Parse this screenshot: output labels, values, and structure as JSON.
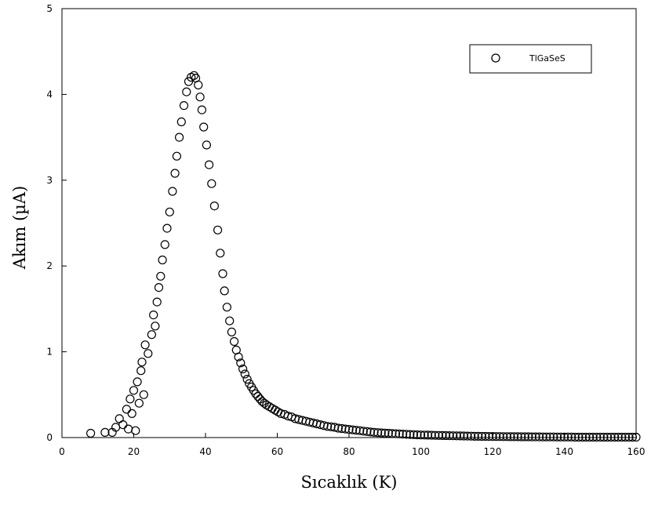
{
  "chart_data": {
    "type": "scatter",
    "title": "",
    "xlabel": "Sıcaklık (K)",
    "ylabel": "Akım (µA)",
    "xlim": [
      0,
      160
    ],
    "ylim": [
      0,
      5
    ],
    "x_ticks": [
      "0",
      "20",
      "40",
      "60",
      "80",
      "100",
      "120",
      "140",
      "160"
    ],
    "y_ticks": [
      "0",
      "1",
      "2",
      "3",
      "4",
      "5"
    ],
    "grid": false,
    "legend_position": "top-right",
    "marker": "open-circle",
    "series": [
      {
        "name": "TlGaSeS",
        "color": "#000000",
        "points": [
          [
            8,
            0.05
          ],
          [
            12,
            0.06
          ],
          [
            14,
            0.06
          ],
          [
            15,
            0.12
          ],
          [
            16,
            0.22
          ],
          [
            17,
            0.15
          ],
          [
            18,
            0.33
          ],
          [
            18.5,
            0.1
          ],
          [
            19,
            0.45
          ],
          [
            19.5,
            0.28
          ],
          [
            20,
            0.55
          ],
          [
            20.5,
            0.08
          ],
          [
            21,
            0.65
          ],
          [
            21.5,
            0.4
          ],
          [
            22,
            0.78
          ],
          [
            22.3,
            0.88
          ],
          [
            22.8,
            0.5
          ],
          [
            23.2,
            1.08
          ],
          [
            24,
            0.98
          ],
          [
            25,
            1.2
          ],
          [
            25.5,
            1.43
          ],
          [
            26,
            1.3
          ],
          [
            26.5,
            1.58
          ],
          [
            27,
            1.75
          ],
          [
            27.5,
            1.88
          ],
          [
            28,
            2.07
          ],
          [
            28.7,
            2.25
          ],
          [
            29.3,
            2.44
          ],
          [
            30,
            2.63
          ],
          [
            30.8,
            2.87
          ],
          [
            31.5,
            3.08
          ],
          [
            32,
            3.28
          ],
          [
            32.7,
            3.5
          ],
          [
            33.3,
            3.68
          ],
          [
            34,
            3.87
          ],
          [
            34.7,
            4.03
          ],
          [
            35.3,
            4.15
          ],
          [
            36,
            4.2
          ],
          [
            36.8,
            4.22
          ],
          [
            37.3,
            4.19
          ],
          [
            38,
            4.11
          ],
          [
            38.5,
            3.97
          ],
          [
            39,
            3.82
          ],
          [
            39.5,
            3.62
          ],
          [
            40.3,
            3.41
          ],
          [
            41,
            3.18
          ],
          [
            41.7,
            2.96
          ],
          [
            42.5,
            2.7
          ],
          [
            43.4,
            2.42
          ],
          [
            44.1,
            2.15
          ],
          [
            44.8,
            1.91
          ],
          [
            45.3,
            1.71
          ],
          [
            46,
            1.52
          ],
          [
            46.7,
            1.36
          ],
          [
            47.3,
            1.23
          ],
          [
            48,
            1.12
          ],
          [
            48.6,
            1.02
          ],
          [
            49.2,
            0.94
          ],
          [
            49.8,
            0.87
          ],
          [
            50.4,
            0.8
          ],
          [
            51,
            0.74
          ],
          [
            51.6,
            0.68
          ],
          [
            52.2,
            0.63
          ],
          [
            52.8,
            0.59
          ],
          [
            53.4,
            0.55
          ],
          [
            54,
            0.51
          ],
          [
            54.6,
            0.48
          ],
          [
            55.2,
            0.45
          ],
          [
            55.8,
            0.42
          ],
          [
            56.4,
            0.4
          ],
          [
            57,
            0.38
          ],
          [
            57.8,
            0.36
          ],
          [
            58.6,
            0.34
          ],
          [
            59.4,
            0.32
          ],
          [
            60.2,
            0.3
          ],
          [
            61,
            0.28
          ],
          [
            62,
            0.27
          ],
          [
            63,
            0.25
          ],
          [
            64,
            0.24
          ],
          [
            65,
            0.22
          ],
          [
            66,
            0.21
          ],
          [
            67,
            0.2
          ],
          [
            68,
            0.19
          ],
          [
            69,
            0.18
          ],
          [
            70,
            0.17
          ],
          [
            71,
            0.16
          ],
          [
            72,
            0.15
          ],
          [
            73,
            0.14
          ],
          [
            74,
            0.13
          ],
          [
            75,
            0.125
          ],
          [
            76,
            0.12
          ],
          [
            77,
            0.11
          ],
          [
            78,
            0.105
          ],
          [
            79,
            0.1
          ],
          [
            80,
            0.095
          ],
          [
            81,
            0.09
          ],
          [
            82,
            0.085
          ],
          [
            83,
            0.08
          ],
          [
            84,
            0.075
          ],
          [
            85,
            0.07
          ],
          [
            86,
            0.065
          ],
          [
            87,
            0.06
          ],
          [
            88,
            0.058
          ],
          [
            89,
            0.055
          ],
          [
            90,
            0.052
          ],
          [
            91,
            0.05
          ],
          [
            92,
            0.047
          ],
          [
            93,
            0.045
          ],
          [
            94,
            0.043
          ],
          [
            95,
            0.04
          ],
          [
            96,
            0.038
          ],
          [
            97,
            0.036
          ],
          [
            98,
            0.034
          ],
          [
            99,
            0.032
          ],
          [
            100,
            0.03
          ],
          [
            101,
            0.029
          ],
          [
            102,
            0.028
          ],
          [
            103,
            0.027
          ],
          [
            104,
            0.026
          ],
          [
            105,
            0.025
          ],
          [
            106,
            0.024
          ],
          [
            107,
            0.023
          ],
          [
            108,
            0.022
          ],
          [
            109,
            0.021
          ],
          [
            110,
            0.02
          ],
          [
            111,
            0.019
          ],
          [
            112,
            0.018
          ],
          [
            113,
            0.017
          ],
          [
            114,
            0.016
          ],
          [
            115,
            0.015
          ],
          [
            116,
            0.015
          ],
          [
            117,
            0.014
          ],
          [
            118,
            0.014
          ],
          [
            119,
            0.013
          ],
          [
            120,
            0.013
          ],
          [
            121,
            0.012
          ],
          [
            122,
            0.012
          ],
          [
            123,
            0.011
          ],
          [
            124,
            0.011
          ],
          [
            125,
            0.01
          ],
          [
            126,
            0.01
          ],
          [
            127,
            0.01
          ],
          [
            128,
            0.009
          ],
          [
            129,
            0.009
          ],
          [
            130,
            0.009
          ],
          [
            131,
            0.008
          ],
          [
            132,
            0.008
          ],
          [
            133,
            0.008
          ],
          [
            134,
            0.007
          ],
          [
            135,
            0.007
          ],
          [
            136,
            0.007
          ],
          [
            137,
            0.007
          ],
          [
            138,
            0.006
          ],
          [
            139,
            0.006
          ],
          [
            140,
            0.006
          ],
          [
            141,
            0.006
          ],
          [
            142,
            0.006
          ],
          [
            143,
            0.005
          ],
          [
            144,
            0.005
          ],
          [
            145,
            0.005
          ],
          [
            146,
            0.005
          ],
          [
            147,
            0.005
          ],
          [
            148,
            0.005
          ],
          [
            149,
            0.005
          ],
          [
            150,
            0.005
          ],
          [
            151,
            0.005
          ],
          [
            152,
            0.005
          ],
          [
            153,
            0.005
          ],
          [
            154,
            0.005
          ],
          [
            155,
            0.005
          ],
          [
            156,
            0.005
          ],
          [
            157,
            0.005
          ],
          [
            158,
            0.005
          ],
          [
            159,
            0.005
          ],
          [
            160,
            0.005
          ]
        ]
      }
    ]
  }
}
